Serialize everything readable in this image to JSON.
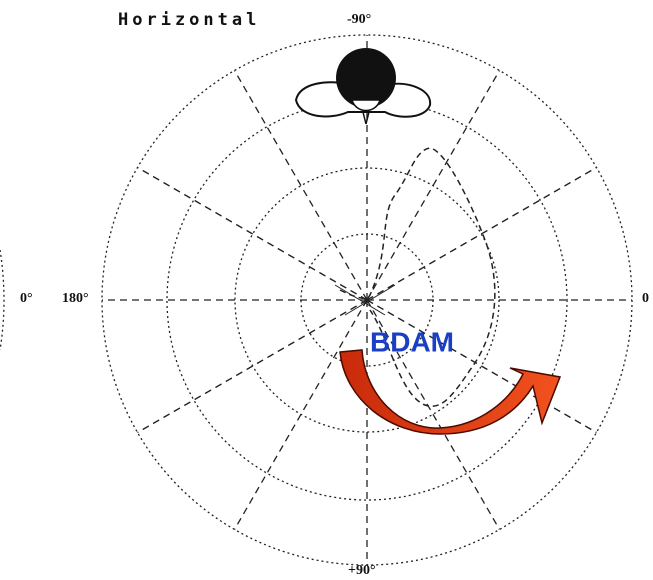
{
  "title": "Horizontal",
  "labels": {
    "top": "-90°",
    "left_outer": "0°",
    "left": "180°",
    "right": "0",
    "bottom": "+90°"
  },
  "annotation": "BDAM"
}
